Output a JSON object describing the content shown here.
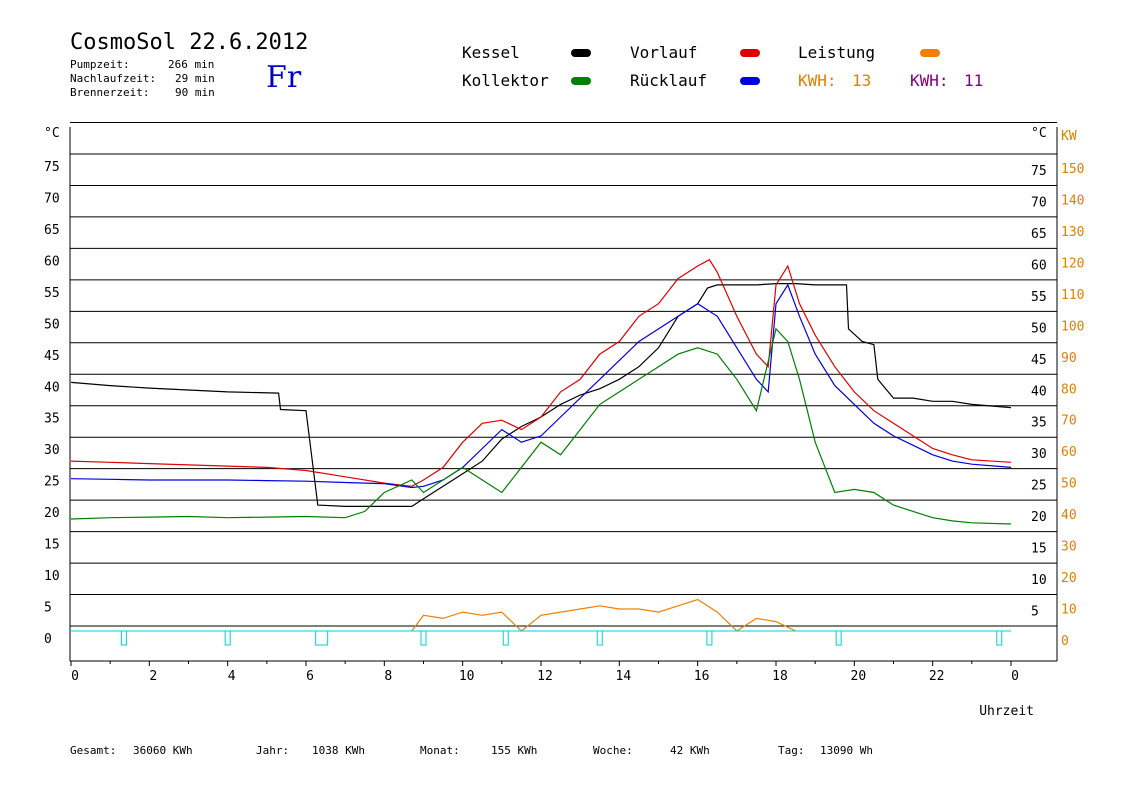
{
  "header": {
    "title": "CosmoSol 22.6.2012",
    "stats": [
      {
        "label": "Pumpzeit:",
        "value": "266 min"
      },
      {
        "label": "Nachlaufzeit:",
        "value": "29 min"
      },
      {
        "label": "Brennerzeit:",
        "value": "90 min"
      }
    ],
    "day": "Fr"
  },
  "legend": {
    "items": [
      {
        "name": "Kessel",
        "color": "#000000"
      },
      {
        "name": "Vorlauf",
        "color": "#e00000"
      },
      {
        "name": "Leistung",
        "color": "#f08000"
      },
      {
        "name": "Kollektor",
        "color": "#008000"
      },
      {
        "name": "Rücklauf",
        "color": "#0000e0"
      }
    ],
    "kwh": [
      {
        "label": "KWH:",
        "value": "13",
        "color": "#e08000"
      },
      {
        "label": "KWH:",
        "value": "11",
        "color": "#800080"
      }
    ]
  },
  "footer": {
    "items": [
      {
        "label": "Gesamt:",
        "value": "36060 KWh"
      },
      {
        "label": "Jahr:",
        "value": "1038 KWh"
      },
      {
        "label": "Monat:",
        "value": "155 KWh"
      },
      {
        "label": "Woche:",
        "value": "42 KWh"
      },
      {
        "label": "Tag:",
        "value": "13090 Wh"
      }
    ]
  },
  "chart_data": {
    "type": "line",
    "xlabel": "Uhrzeit",
    "ylabel_left": "°C",
    "ylabel_right_temp": "°C",
    "ylabel_right_kw": "KW",
    "xlim": [
      0,
      24
    ],
    "ylim": [
      0,
      80
    ],
    "x_ticks": [
      "0",
      "2",
      "4",
      "6",
      "8",
      "10",
      "12",
      "14",
      "16",
      "18",
      "20",
      "22",
      "0"
    ],
    "y_ticks_left": [
      0,
      5,
      10,
      15,
      20,
      25,
      30,
      35,
      40,
      45,
      50,
      55,
      60,
      65,
      70,
      75
    ],
    "y_ticks_right": [
      5,
      10,
      15,
      20,
      25,
      30,
      35,
      40,
      45,
      50,
      55,
      60,
      65,
      70,
      75
    ],
    "y_ticks_kw": [
      0,
      10,
      20,
      30,
      40,
      50,
      60,
      70,
      80,
      90,
      100,
      110,
      120,
      130,
      140,
      150
    ],
    "grid": "horizontal",
    "series": [
      {
        "name": "Kessel",
        "color": "#000000",
        "points": [
          [
            0,
            39.5
          ],
          [
            1,
            39
          ],
          [
            2,
            38.6
          ],
          [
            3,
            38.3
          ],
          [
            4,
            38
          ],
          [
            5.3,
            37.8
          ],
          [
            5.35,
            35.2
          ],
          [
            6,
            35
          ],
          [
            6.3,
            20
          ],
          [
            7,
            19.8
          ],
          [
            8,
            19.8
          ],
          [
            8.7,
            19.8
          ],
          [
            9,
            21
          ],
          [
            9.5,
            23
          ],
          [
            10,
            25
          ],
          [
            10.5,
            27
          ],
          [
            11,
            30.5
          ],
          [
            11.5,
            32.5
          ],
          [
            12,
            34
          ],
          [
            12.5,
            36
          ],
          [
            13,
            37.5
          ],
          [
            13.5,
            38.5
          ],
          [
            14,
            40
          ],
          [
            14.5,
            42
          ],
          [
            15,
            45
          ],
          [
            15.5,
            50
          ],
          [
            16,
            52
          ],
          [
            16.25,
            54.5
          ],
          [
            16.5,
            55
          ],
          [
            17,
            55
          ],
          [
            17.5,
            55
          ],
          [
            18,
            55.2
          ],
          [
            18.5,
            55.2
          ],
          [
            19,
            55
          ],
          [
            19.5,
            55
          ],
          [
            19.8,
            55
          ],
          [
            19.85,
            48
          ],
          [
            20.2,
            46
          ],
          [
            20.5,
            45.5
          ],
          [
            20.6,
            40
          ],
          [
            21,
            37
          ],
          [
            21.5,
            37
          ],
          [
            22,
            36.5
          ],
          [
            22.5,
            36.5
          ],
          [
            23,
            36
          ],
          [
            24,
            35.5
          ]
        ]
      },
      {
        "name": "Vorlauf",
        "color": "#e00000",
        "points": [
          [
            0,
            27
          ],
          [
            1,
            26.8
          ],
          [
            2,
            26.6
          ],
          [
            3,
            26.4
          ],
          [
            4,
            26.2
          ],
          [
            5,
            26
          ],
          [
            6,
            25.5
          ],
          [
            7,
            24.5
          ],
          [
            8,
            23.5
          ],
          [
            8.7,
            23
          ],
          [
            9,
            24
          ],
          [
            9.5,
            26
          ],
          [
            10,
            30
          ],
          [
            10.5,
            33
          ],
          [
            11,
            33.5
          ],
          [
            11.5,
            32
          ],
          [
            12,
            34
          ],
          [
            12.5,
            38
          ],
          [
            13,
            40
          ],
          [
            13.5,
            44
          ],
          [
            14,
            46
          ],
          [
            14.5,
            50
          ],
          [
            15,
            52
          ],
          [
            15.5,
            56
          ],
          [
            16,
            58
          ],
          [
            16.3,
            59
          ],
          [
            16.5,
            57
          ],
          [
            17,
            50
          ],
          [
            17.5,
            44
          ],
          [
            17.8,
            42
          ],
          [
            18,
            55
          ],
          [
            18.3,
            58
          ],
          [
            18.6,
            52
          ],
          [
            19,
            47
          ],
          [
            19.5,
            42
          ],
          [
            20,
            38
          ],
          [
            20.5,
            35
          ],
          [
            21,
            33
          ],
          [
            21.5,
            31
          ],
          [
            22,
            29
          ],
          [
            22.5,
            28
          ],
          [
            23,
            27.2
          ],
          [
            24,
            26.8
          ]
        ]
      },
      {
        "name": "Rücklauf",
        "color": "#0000e0",
        "points": [
          [
            0,
            24.2
          ],
          [
            1,
            24.1
          ],
          [
            2,
            24
          ],
          [
            3,
            24
          ],
          [
            4,
            24
          ],
          [
            5,
            23.9
          ],
          [
            6,
            23.8
          ],
          [
            7,
            23.6
          ],
          [
            8,
            23.4
          ],
          [
            8.7,
            22.8
          ],
          [
            9,
            23
          ],
          [
            9.5,
            24
          ],
          [
            10,
            26
          ],
          [
            10.5,
            29
          ],
          [
            11,
            32
          ],
          [
            11.5,
            30
          ],
          [
            12,
            31
          ],
          [
            12.5,
            34
          ],
          [
            13,
            37
          ],
          [
            13.5,
            40
          ],
          [
            14,
            43
          ],
          [
            14.5,
            46
          ],
          [
            15,
            48
          ],
          [
            15.5,
            50
          ],
          [
            16,
            52
          ],
          [
            16.5,
            50
          ],
          [
            17,
            45
          ],
          [
            17.5,
            40
          ],
          [
            17.8,
            38
          ],
          [
            18,
            52
          ],
          [
            18.3,
            55
          ],
          [
            18.6,
            50
          ],
          [
            19,
            44
          ],
          [
            19.5,
            39
          ],
          [
            20,
            36
          ],
          [
            20.5,
            33
          ],
          [
            21,
            31
          ],
          [
            21.5,
            29.5
          ],
          [
            22,
            28
          ],
          [
            22.5,
            27
          ],
          [
            23,
            26.5
          ],
          [
            24,
            26
          ]
        ]
      },
      {
        "name": "Kollektor",
        "color": "#008000",
        "points": [
          [
            0,
            17.8
          ],
          [
            1,
            18
          ],
          [
            2,
            18.1
          ],
          [
            3,
            18.2
          ],
          [
            4,
            18
          ],
          [
            5,
            18.1
          ],
          [
            6,
            18.2
          ],
          [
            7,
            18
          ],
          [
            7.5,
            19
          ],
          [
            8,
            22
          ],
          [
            8.7,
            24
          ],
          [
            9,
            22
          ],
          [
            9.5,
            24
          ],
          [
            10,
            26
          ],
          [
            10.5,
            24
          ],
          [
            11,
            22
          ],
          [
            11.5,
            26
          ],
          [
            12,
            30
          ],
          [
            12.5,
            28
          ],
          [
            13,
            32
          ],
          [
            13.5,
            36
          ],
          [
            14,
            38
          ],
          [
            14.5,
            40
          ],
          [
            15,
            42
          ],
          [
            15.5,
            44
          ],
          [
            16,
            45
          ],
          [
            16.5,
            44
          ],
          [
            17,
            40
          ],
          [
            17.5,
            35
          ],
          [
            18,
            48
          ],
          [
            18.3,
            46
          ],
          [
            18.6,
            40
          ],
          [
            19,
            30
          ],
          [
            19.5,
            22
          ],
          [
            20,
            22.5
          ],
          [
            20.5,
            22
          ],
          [
            21,
            20
          ],
          [
            21.5,
            19
          ],
          [
            22,
            18
          ],
          [
            22.5,
            17.5
          ],
          [
            23,
            17.2
          ],
          [
            24,
            17
          ]
        ]
      },
      {
        "name": "Leistung",
        "color": "#f08000",
        "points": [
          [
            8.7,
            0
          ],
          [
            9,
            2.5
          ],
          [
            9.5,
            2
          ],
          [
            10,
            3
          ],
          [
            10.5,
            2.5
          ],
          [
            11,
            3
          ],
          [
            11.5,
            0
          ],
          [
            12,
            2.5
          ],
          [
            12.5,
            3
          ],
          [
            13,
            3.5
          ],
          [
            13.5,
            4
          ],
          [
            14,
            3.5
          ],
          [
            14.5,
            3.5
          ],
          [
            15,
            3
          ],
          [
            15.5,
            4
          ],
          [
            16,
            5
          ],
          [
            16.5,
            3
          ],
          [
            17,
            0
          ],
          [
            17.5,
            2
          ],
          [
            18,
            1.5
          ],
          [
            18.5,
            0
          ]
        ]
      }
    ]
  }
}
